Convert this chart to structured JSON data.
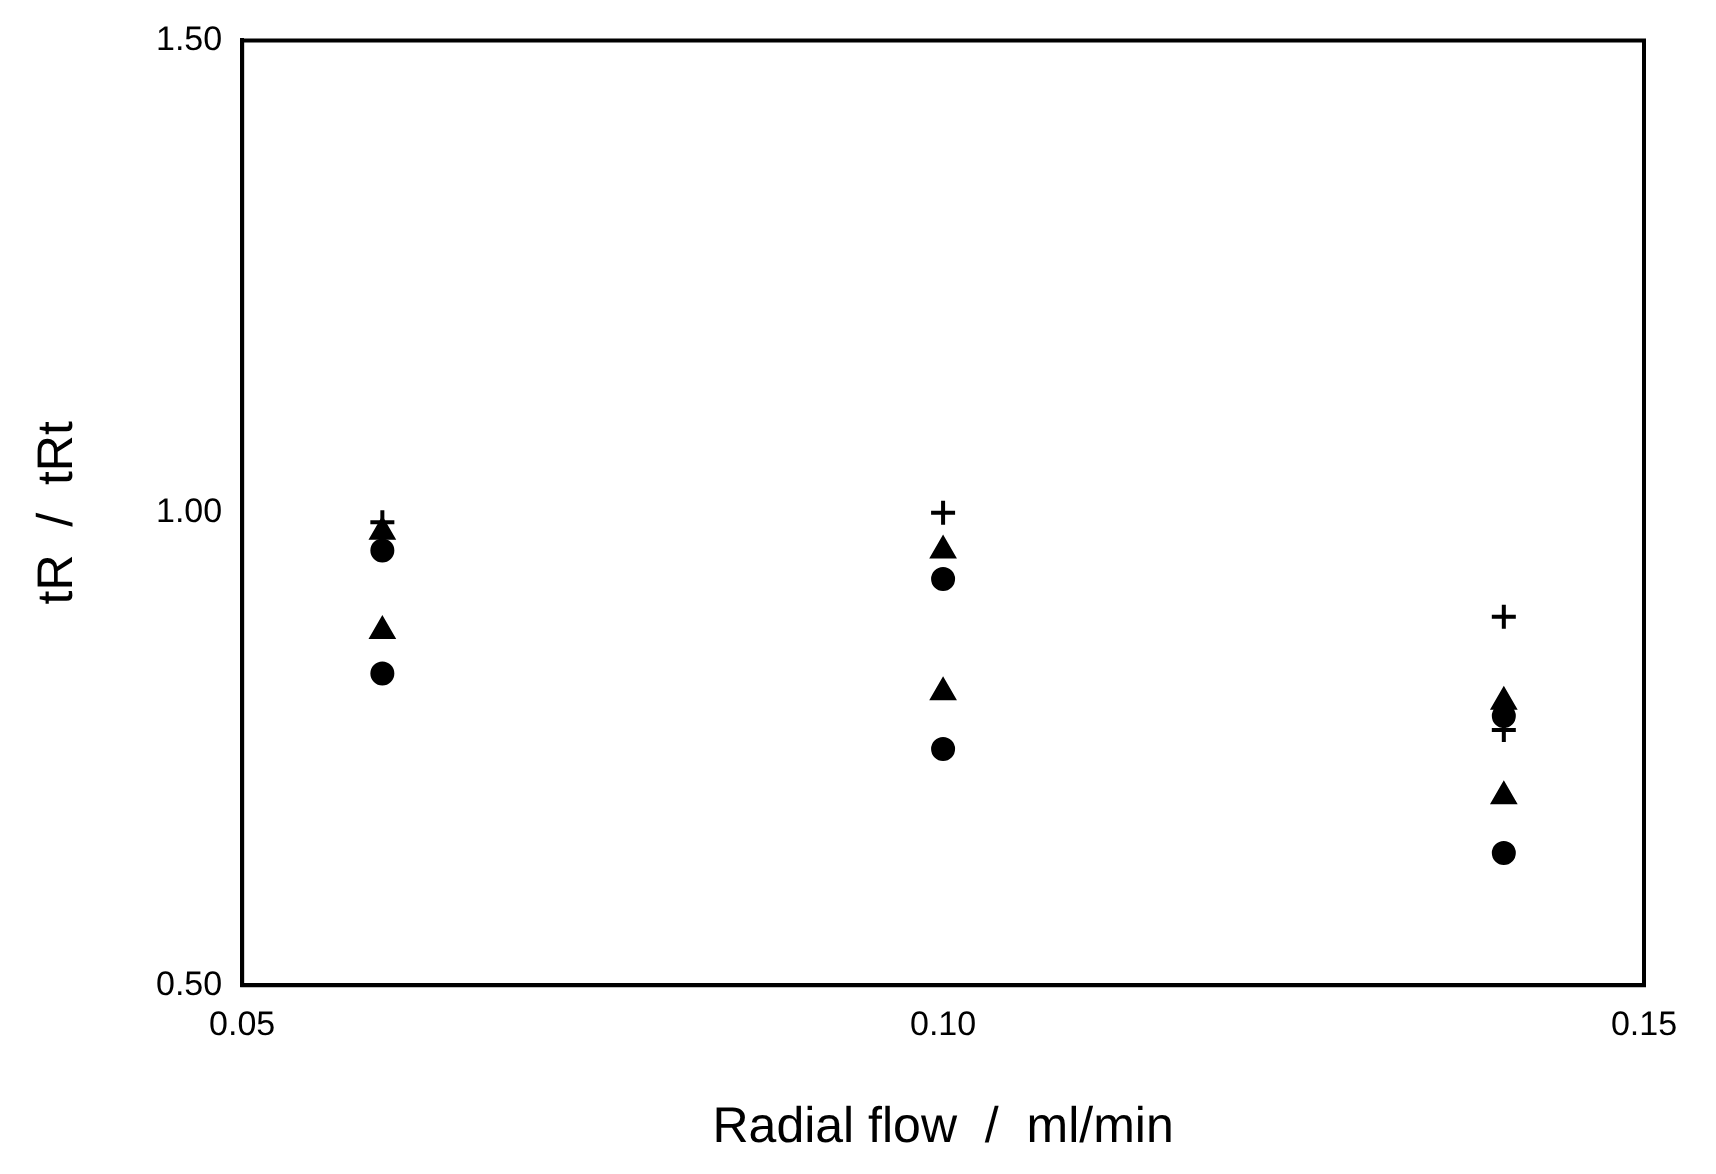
{
  "chart_data": {
    "type": "scatter",
    "xlabel": "Radial flow  /  ml/min",
    "ylabel": "tR  /  tRt",
    "x": [
      0.06,
      0.1,
      0.14
    ],
    "series": [
      {
        "color": "#000000",
        "marker": "cross",
        "values": [
          0.99,
          1.0,
          0.89
        ]
      },
      {
        "color": "#000000",
        "marker": "triangle",
        "values": [
          0.98,
          0.96,
          0.8
        ]
      },
      {
        "color": "#000000",
        "marker": "circle",
        "values": [
          0.96,
          0.93,
          0.785
        ]
      },
      {
        "color": "#000000",
        "marker": "cross",
        "values": [
          null,
          null,
          0.77
        ]
      },
      {
        "color": "#000000",
        "marker": "triangle",
        "values": [
          0.875,
          0.81,
          0.7
        ]
      },
      {
        "color": "#000000",
        "marker": "circle",
        "values": [
          0.83,
          0.75,
          0.64
        ]
      }
    ],
    "xlim": [
      0.05,
      0.15
    ],
    "xticks": [
      {
        "value": 0.05,
        "label": "0.05"
      },
      {
        "value": 0.1,
        "label": "0.10"
      },
      {
        "value": 0.15,
        "label": "0.15"
      }
    ],
    "ylim": [
      0.5,
      1.5
    ],
    "yticks": [
      {
        "value": 0.5,
        "label": "0.50"
      },
      {
        "value": 1.0,
        "label": "1.00"
      },
      {
        "value": 1.5,
        "label": "1.50"
      }
    ],
    "grid": false,
    "legend": false
  }
}
